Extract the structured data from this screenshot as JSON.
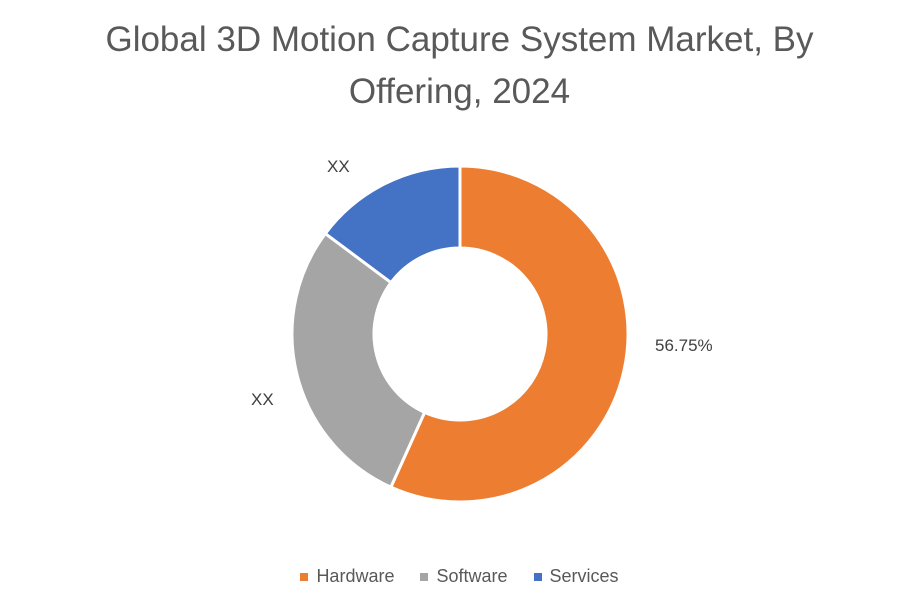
{
  "chart_data": {
    "type": "pie",
    "subtype": "donut",
    "title": "Global 3D Motion Capture System Market, By Offering, 2024",
    "categories": [
      "Hardware",
      "Software",
      "Services"
    ],
    "values": [
      56.75,
      28.45,
      14.8
    ],
    "data_labels": [
      "56.75%",
      "XX",
      "XX"
    ],
    "colors": [
      "#ED7D31",
      "#A5A5A5",
      "#4472C4"
    ],
    "legend_position": "bottom"
  },
  "title_line1": "Global 3D Motion Capture System Market, By",
  "title_line2": "Offering, 2024",
  "labels": {
    "hardware": "56.75%",
    "software": "XX",
    "services": "XX"
  },
  "legend": [
    {
      "label": "Hardware",
      "color": "#ED7D31"
    },
    {
      "label": "Software",
      "color": "#A5A5A5"
    },
    {
      "label": "Services",
      "color": "#4472C4"
    }
  ]
}
